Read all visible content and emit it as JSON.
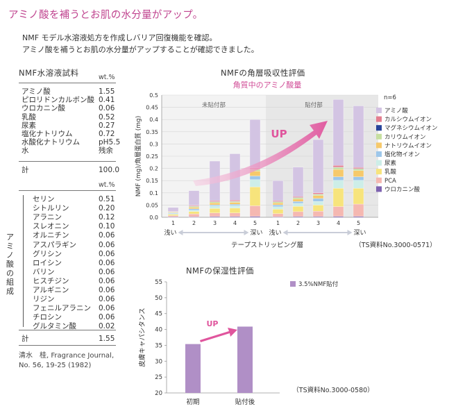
{
  "header": {
    "title": "アミノ酸を補うとお肌の水分量がアップ。",
    "intro_line1": "NMF モデル水溶液処方を作成しバリア回復機能を確認。",
    "intro_line2": "アミノ酸を補うとお肌の水分量がアップすることが確認できました。"
  },
  "table": {
    "title": "NMF水溶液試料",
    "unit": "wt.%",
    "top_rows": [
      {
        "name": "アミノ酸",
        "value": "1.55"
      },
      {
        "name": "ピロリドンカルボン酸",
        "value": "0.41"
      },
      {
        "name": "ウロカニン酸",
        "value": "0.06"
      },
      {
        "name": "乳酸",
        "value": "0.52"
      },
      {
        "name": "尿素",
        "value": "0.27"
      },
      {
        "name": "塩化ナトリウム",
        "value": "0.72"
      },
      {
        "name": "水酸化ナトリウム",
        "value": "pH5.5"
      },
      {
        "name": "水",
        "value": "残余"
      }
    ],
    "total1_label": "計",
    "total1_value": "100.0",
    "group_label": "アミノ酸の組成",
    "amino_rows": [
      {
        "name": "セリン",
        "value": "0.51"
      },
      {
        "name": "シトルリン",
        "value": "0.20"
      },
      {
        "name": "アラニン",
        "value": "0.12"
      },
      {
        "name": "スレオニン",
        "value": "0.10"
      },
      {
        "name": "オルニチン",
        "value": "0.06"
      },
      {
        "name": "アスパラギン",
        "value": "0.06"
      },
      {
        "name": "グリシン",
        "value": "0.06"
      },
      {
        "name": "ロイシン",
        "value": "0.06"
      },
      {
        "name": "バリン",
        "value": "0.06"
      },
      {
        "name": "ヒスチジン",
        "value": "0.06"
      },
      {
        "name": "アルギニン",
        "value": "0.06"
      },
      {
        "name": "リジン",
        "value": "0.06"
      },
      {
        "name": "フェニルアラニン",
        "value": "0.06"
      },
      {
        "name": "チロシン",
        "value": "0.06"
      },
      {
        "name": "グルタミン酸",
        "value": "0.02"
      }
    ],
    "total2_label": "計",
    "total2_value": "1.55",
    "reference_line1": "清水　桂, Fragrance Journal,",
    "reference_line2": "No. 56, 19-25 (1982)"
  },
  "chart_data": [
    {
      "type": "bar",
      "stacked": true,
      "title": "NMFの角層吸収性評価",
      "subtitle": "角質中のアミノ酸量",
      "ylabel": "NMF (mg)/角層蛋白質 (mg)",
      "xlabel": "テープストリッピング層",
      "ylim": [
        0,
        0.5
      ],
      "yticks": [
        0.0,
        0.05,
        0.1,
        0.15,
        0.2,
        0.25,
        0.3,
        0.35,
        0.4,
        0.45,
        0.5
      ],
      "groups": [
        {
          "label": "未貼付部",
          "categories": [
            "1",
            "2",
            "3",
            "4",
            "5"
          ]
        },
        {
          "label": "貼付部",
          "categories": [
            "1",
            "2",
            "3",
            "4",
            "5"
          ]
        }
      ],
      "group_shading": {
        "貼付部": "#e8e8e8",
        "未貼付部": "#f3f3f3"
      },
      "axis_hints": {
        "left": "浅い",
        "right": "深い"
      },
      "n_note": "n=6",
      "annotation": "UP",
      "source": "（TS資料No.3000-0571）",
      "legend_position": "right",
      "series": [
        {
          "name": "ウロカニン酸",
          "color": "#7e62b0",
          "values": [
            0.002,
            0.002,
            0.003,
            0.003,
            0.004,
            0.002,
            0.003,
            0.003,
            0.004,
            0.004
          ]
        },
        {
          "name": "PCA",
          "color": "#f5b8b1",
          "values": [
            0.005,
            0.012,
            0.015,
            0.015,
            0.043,
            0.013,
            0.02,
            0.022,
            0.04,
            0.05
          ]
        },
        {
          "name": "乳酸",
          "color": "#f7e47c",
          "values": [
            0.005,
            0.01,
            0.018,
            0.02,
            0.077,
            0.018,
            0.022,
            0.025,
            0.075,
            0.065
          ]
        },
        {
          "name": "尿素",
          "color": "#cdeee8",
          "values": [
            0.003,
            0.005,
            0.01,
            0.01,
            0.03,
            0.01,
            0.012,
            0.015,
            0.032,
            0.032
          ]
        },
        {
          "name": "塩化物イオン",
          "color": "#9ec7ea",
          "values": [
            0.003,
            0.006,
            0.005,
            0.005,
            0.015,
            0.008,
            0.008,
            0.012,
            0.015,
            0.015
          ]
        },
        {
          "name": "ナトリウムイオン",
          "color": "#f6c96b",
          "values": [
            0.002,
            0.006,
            0.008,
            0.008,
            0.02,
            0.008,
            0.01,
            0.012,
            0.03,
            0.025
          ]
        },
        {
          "name": "カリウムイオン",
          "color": "#c6dfa0",
          "values": [
            0.002,
            0.004,
            0.004,
            0.004,
            0.007,
            0.004,
            0.005,
            0.005,
            0.008,
            0.007
          ]
        },
        {
          "name": "マグネシウムイオン",
          "color": "#27449a",
          "values": [
            0.001,
            0.001,
            0.001,
            0.001,
            0.001,
            0.001,
            0.001,
            0.001,
            0.001,
            0.001
          ]
        },
        {
          "name": "カルシウムイオン",
          "color": "#e37d8f",
          "values": [
            0.002,
            0.003,
            0.004,
            0.004,
            0.005,
            0.004,
            0.004,
            0.005,
            0.007,
            0.005
          ]
        },
        {
          "name": "アミノ酸",
          "color": "#d3c4e3",
          "values": [
            0.015,
            0.06,
            0.162,
            0.19,
            0.198,
            0.082,
            0.12,
            0.218,
            0.27,
            0.252
          ]
        }
      ]
    },
    {
      "type": "bar",
      "title": "NMFの保湿性評価",
      "ylabel": "皮膚キャパシタンス",
      "categories": [
        "初期",
        "貼付後"
      ],
      "ylim": [
        20,
        55
      ],
      "yticks": [
        20,
        25,
        30,
        35,
        40,
        45,
        50,
        55
      ],
      "series": [
        {
          "name": "3.5%NMF貼付",
          "color": "#b08fc6",
          "values": [
            35.4,
            40.9
          ]
        }
      ],
      "annotation": "UP",
      "source": "（TS資料No.3000-0580）",
      "legend_position": "top-right"
    }
  ]
}
